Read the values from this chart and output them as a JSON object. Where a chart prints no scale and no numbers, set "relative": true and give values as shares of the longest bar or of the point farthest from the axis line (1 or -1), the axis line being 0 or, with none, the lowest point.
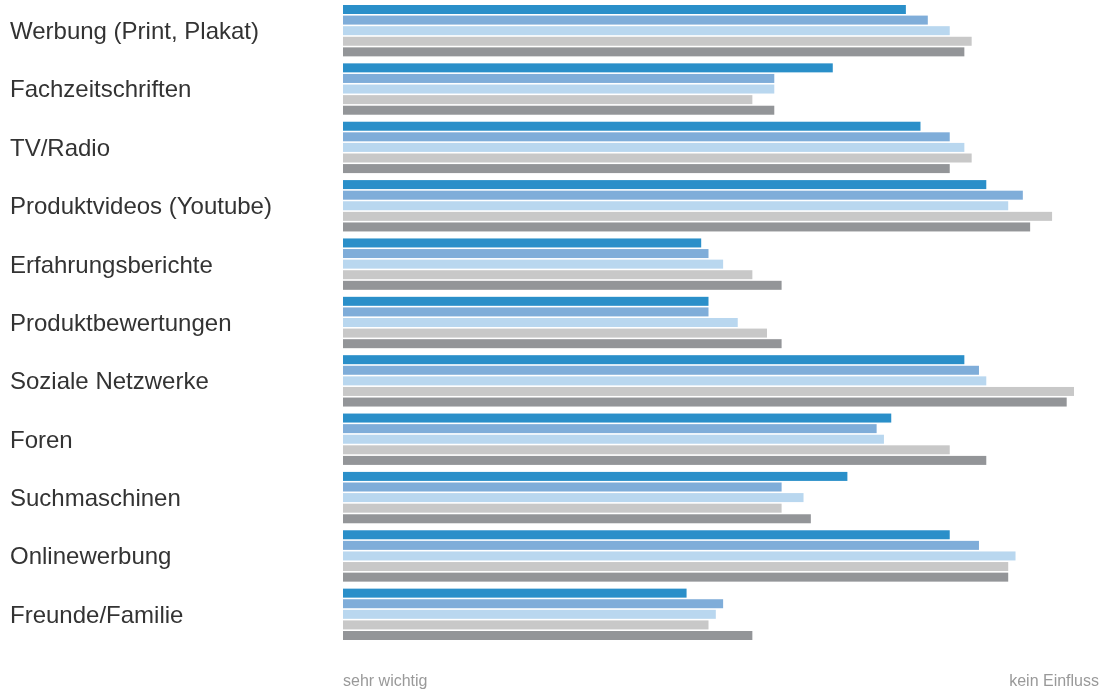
{
  "chart_data": {
    "type": "bar",
    "orientation": "horizontal",
    "relative": true,
    "categories": [
      "Werbung (Print, Plakat)",
      "Fachzeitschriften",
      "TV/Radio",
      "Produktvideos (Youtube)",
      "Erfahrungsberichte",
      "Produktbewertungen",
      "Soziale Netzwerke",
      "Foren",
      "Suchmaschinen",
      "Onlinewerbung",
      "Freunde/Familie"
    ],
    "series": [
      {
        "color": "#2a8fc9",
        "values": [
          0.77,
          0.67,
          0.79,
          0.88,
          0.49,
          0.5,
          0.85,
          0.75,
          0.69,
          0.83,
          0.47
        ]
      },
      {
        "color": "#7fadd9",
        "values": [
          0.8,
          0.59,
          0.83,
          0.93,
          0.5,
          0.5,
          0.87,
          0.73,
          0.6,
          0.87,
          0.52
        ]
      },
      {
        "color": "#b9d7ef",
        "values": [
          0.83,
          0.59,
          0.85,
          0.91,
          0.52,
          0.54,
          0.88,
          0.74,
          0.63,
          0.92,
          0.51
        ]
      },
      {
        "color": "#c8c8c8",
        "values": [
          0.86,
          0.56,
          0.86,
          0.97,
          0.56,
          0.58,
          1,
          0.83,
          0.6,
          0.91,
          0.5
        ]
      },
      {
        "color": "#939598",
        "values": [
          0.85,
          0.59,
          0.83,
          0.94,
          0.6,
          0.6,
          0.99,
          0.88,
          0.64,
          0.91,
          0.56
        ]
      }
    ],
    "annotations": [
      "sehr wichtig",
      "kein Einfluss"
    ]
  }
}
